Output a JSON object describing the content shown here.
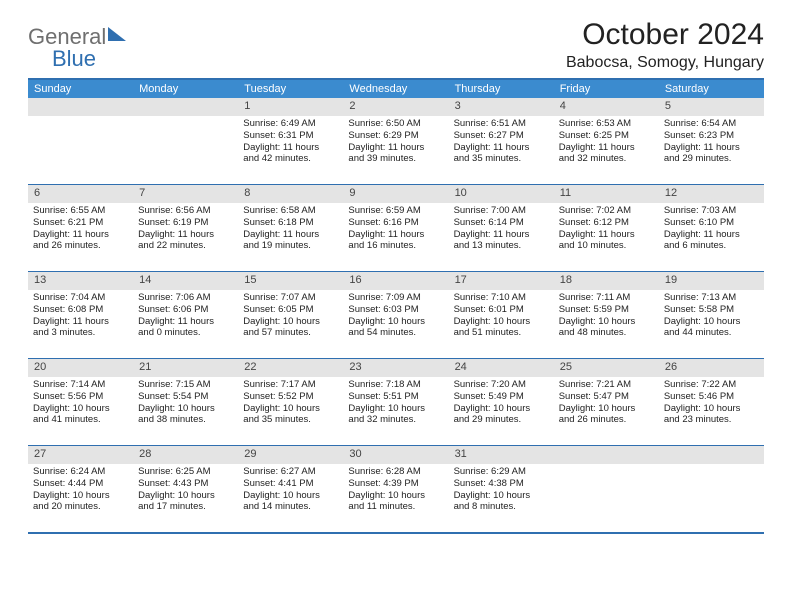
{
  "logo": {
    "text_general": "General",
    "text_blue": "Blue"
  },
  "title": "October 2024",
  "location": "Babocsa, Somogy, Hungary",
  "colors": {
    "header_bg": "#3b8bcf",
    "border": "#2f6fb0",
    "daynum_bg": "#e4e4e4",
    "text": "#222222",
    "logo_gray": "#6f6f6f",
    "logo_blue": "#2f6fb0"
  },
  "day_headers": [
    "Sunday",
    "Monday",
    "Tuesday",
    "Wednesday",
    "Thursday",
    "Friday",
    "Saturday"
  ],
  "labels": {
    "sunrise": "Sunrise:",
    "sunset": "Sunset:",
    "daylight": "Daylight:"
  },
  "weeks": [
    [
      {
        "n": "",
        "sr": "",
        "ss": "",
        "dl1": "",
        "dl2": ""
      },
      {
        "n": "",
        "sr": "",
        "ss": "",
        "dl1": "",
        "dl2": ""
      },
      {
        "n": "1",
        "sr": "6:49 AM",
        "ss": "6:31 PM",
        "dl1": "11 hours",
        "dl2": "and 42 minutes."
      },
      {
        "n": "2",
        "sr": "6:50 AM",
        "ss": "6:29 PM",
        "dl1": "11 hours",
        "dl2": "and 39 minutes."
      },
      {
        "n": "3",
        "sr": "6:51 AM",
        "ss": "6:27 PM",
        "dl1": "11 hours",
        "dl2": "and 35 minutes."
      },
      {
        "n": "4",
        "sr": "6:53 AM",
        "ss": "6:25 PM",
        "dl1": "11 hours",
        "dl2": "and 32 minutes."
      },
      {
        "n": "5",
        "sr": "6:54 AM",
        "ss": "6:23 PM",
        "dl1": "11 hours",
        "dl2": "and 29 minutes."
      }
    ],
    [
      {
        "n": "6",
        "sr": "6:55 AM",
        "ss": "6:21 PM",
        "dl1": "11 hours",
        "dl2": "and 26 minutes."
      },
      {
        "n": "7",
        "sr": "6:56 AM",
        "ss": "6:19 PM",
        "dl1": "11 hours",
        "dl2": "and 22 minutes."
      },
      {
        "n": "8",
        "sr": "6:58 AM",
        "ss": "6:18 PM",
        "dl1": "11 hours",
        "dl2": "and 19 minutes."
      },
      {
        "n": "9",
        "sr": "6:59 AM",
        "ss": "6:16 PM",
        "dl1": "11 hours",
        "dl2": "and 16 minutes."
      },
      {
        "n": "10",
        "sr": "7:00 AM",
        "ss": "6:14 PM",
        "dl1": "11 hours",
        "dl2": "and 13 minutes."
      },
      {
        "n": "11",
        "sr": "7:02 AM",
        "ss": "6:12 PM",
        "dl1": "11 hours",
        "dl2": "and 10 minutes."
      },
      {
        "n": "12",
        "sr": "7:03 AM",
        "ss": "6:10 PM",
        "dl1": "11 hours",
        "dl2": "and 6 minutes."
      }
    ],
    [
      {
        "n": "13",
        "sr": "7:04 AM",
        "ss": "6:08 PM",
        "dl1": "11 hours",
        "dl2": "and 3 minutes."
      },
      {
        "n": "14",
        "sr": "7:06 AM",
        "ss": "6:06 PM",
        "dl1": "11 hours",
        "dl2": "and 0 minutes."
      },
      {
        "n": "15",
        "sr": "7:07 AM",
        "ss": "6:05 PM",
        "dl1": "10 hours",
        "dl2": "and 57 minutes."
      },
      {
        "n": "16",
        "sr": "7:09 AM",
        "ss": "6:03 PM",
        "dl1": "10 hours",
        "dl2": "and 54 minutes."
      },
      {
        "n": "17",
        "sr": "7:10 AM",
        "ss": "6:01 PM",
        "dl1": "10 hours",
        "dl2": "and 51 minutes."
      },
      {
        "n": "18",
        "sr": "7:11 AM",
        "ss": "5:59 PM",
        "dl1": "10 hours",
        "dl2": "and 48 minutes."
      },
      {
        "n": "19",
        "sr": "7:13 AM",
        "ss": "5:58 PM",
        "dl1": "10 hours",
        "dl2": "and 44 minutes."
      }
    ],
    [
      {
        "n": "20",
        "sr": "7:14 AM",
        "ss": "5:56 PM",
        "dl1": "10 hours",
        "dl2": "and 41 minutes."
      },
      {
        "n": "21",
        "sr": "7:15 AM",
        "ss": "5:54 PM",
        "dl1": "10 hours",
        "dl2": "and 38 minutes."
      },
      {
        "n": "22",
        "sr": "7:17 AM",
        "ss": "5:52 PM",
        "dl1": "10 hours",
        "dl2": "and 35 minutes."
      },
      {
        "n": "23",
        "sr": "7:18 AM",
        "ss": "5:51 PM",
        "dl1": "10 hours",
        "dl2": "and 32 minutes."
      },
      {
        "n": "24",
        "sr": "7:20 AM",
        "ss": "5:49 PM",
        "dl1": "10 hours",
        "dl2": "and 29 minutes."
      },
      {
        "n": "25",
        "sr": "7:21 AM",
        "ss": "5:47 PM",
        "dl1": "10 hours",
        "dl2": "and 26 minutes."
      },
      {
        "n": "26",
        "sr": "7:22 AM",
        "ss": "5:46 PM",
        "dl1": "10 hours",
        "dl2": "and 23 minutes."
      }
    ],
    [
      {
        "n": "27",
        "sr": "6:24 AM",
        "ss": "4:44 PM",
        "dl1": "10 hours",
        "dl2": "and 20 minutes."
      },
      {
        "n": "28",
        "sr": "6:25 AM",
        "ss": "4:43 PM",
        "dl1": "10 hours",
        "dl2": "and 17 minutes."
      },
      {
        "n": "29",
        "sr": "6:27 AM",
        "ss": "4:41 PM",
        "dl1": "10 hours",
        "dl2": "and 14 minutes."
      },
      {
        "n": "30",
        "sr": "6:28 AM",
        "ss": "4:39 PM",
        "dl1": "10 hours",
        "dl2": "and 11 minutes."
      },
      {
        "n": "31",
        "sr": "6:29 AM",
        "ss": "4:38 PM",
        "dl1": "10 hours",
        "dl2": "and 8 minutes."
      },
      {
        "n": "",
        "sr": "",
        "ss": "",
        "dl1": "",
        "dl2": ""
      },
      {
        "n": "",
        "sr": "",
        "ss": "",
        "dl1": "",
        "dl2": ""
      }
    ]
  ]
}
